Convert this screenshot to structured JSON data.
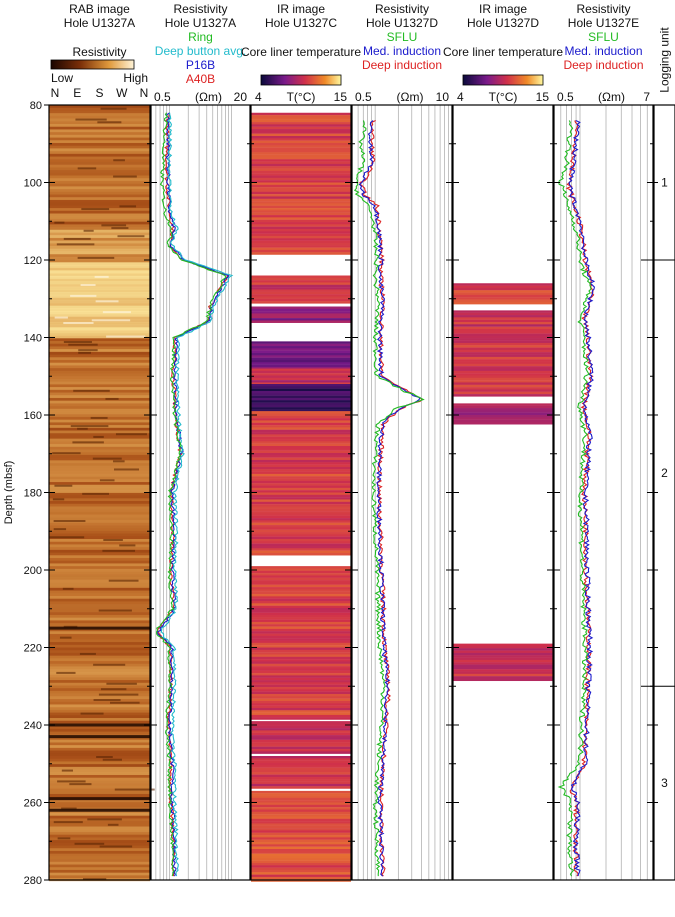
{
  "figure": {
    "depth_axis": {
      "label": "Depth (mbsf)",
      "range": [
        80,
        280
      ],
      "ticks": [
        80,
        100,
        120,
        140,
        160,
        180,
        200,
        220,
        240,
        260,
        280
      ],
      "inverted": true
    },
    "logging_unit": {
      "label": "Logging unit",
      "units": [
        {
          "name": "1",
          "top": 80,
          "bottom": 120
        },
        {
          "name": "2",
          "top": 120,
          "bottom": 230
        },
        {
          "name": "3",
          "top": 230,
          "bottom": 280
        }
      ]
    },
    "colors": {
      "ring": "#22bb22",
      "deep_button": "#22bbcc",
      "p16b": "#1a1acc",
      "a40b": "#dd2222",
      "sflu": "#22bb22",
      "med_induction": "#1a1acc",
      "deep_induction": "#dd2222"
    }
  },
  "chart_data": [
    {
      "type": "heatmap",
      "title": "RAB image",
      "subtitle": "Hole U1327A",
      "colorbar": {
        "label": "Resistivity",
        "low": "Low",
        "high": "High"
      },
      "x_ticks": [
        "N",
        "E",
        "S",
        "W",
        "N"
      ],
      "depth_range": [
        80,
        280
      ],
      "bright_zones": [
        [
          120,
          140
        ]
      ],
      "dark_bands": [
        215,
        240,
        243,
        259,
        262
      ]
    },
    {
      "type": "line",
      "title": "Resistivity",
      "subtitle": "Hole U1327A",
      "xlabel": "(Ωm)",
      "x_scale": "log",
      "xlim": [
        0.5,
        20
      ],
      "x_ticks": [
        0.5,
        20
      ],
      "series": [
        {
          "name": "Ring",
          "depth": [
            82,
            90,
            100,
            108,
            112,
            116,
            120,
            124,
            128,
            132,
            136,
            140,
            150,
            160,
            170,
            180,
            190,
            200,
            210,
            216,
            220,
            230,
            240,
            250,
            260,
            270,
            279
          ],
          "values": [
            0.9,
            0.8,
            0.75,
            0.85,
            1.1,
            0.95,
            1.6,
            8,
            6,
            4.5,
            4,
            1.2,
            1.1,
            1.2,
            1.5,
            1,
            1.1,
            1.0,
            1.1,
            0.6,
            1.0,
            1.0,
            0.9,
            1.0,
            1.0,
            1.1,
            1.1
          ]
        },
        {
          "name": "Deep button avg.",
          "depth": [
            82,
            90,
            100,
            108,
            112,
            116,
            120,
            124,
            128,
            132,
            136,
            140,
            150,
            160,
            170,
            180,
            190,
            200,
            210,
            216,
            220,
            230,
            240,
            250,
            260,
            270,
            279
          ],
          "values": [
            1.0,
            1.0,
            1.0,
            1.05,
            1.3,
            1.05,
            1.8,
            10,
            7,
            5,
            4.5,
            1.4,
            1.3,
            1.4,
            1.6,
            1.2,
            1.3,
            1.2,
            1.3,
            0.7,
            1.2,
            1.2,
            1.1,
            1.2,
            1.2,
            1.3,
            1.3
          ]
        },
        {
          "name": "P16B",
          "depth": [
            82,
            90,
            100,
            108,
            112,
            116,
            120,
            124,
            128,
            132,
            136,
            140,
            150,
            160,
            170,
            180,
            190,
            200,
            210,
            216,
            220,
            230,
            240,
            250,
            260,
            270,
            279
          ],
          "values": [
            0.95,
            0.95,
            0.95,
            1.0,
            1.2,
            1.0,
            1.7,
            9,
            6.5,
            4.8,
            4.2,
            1.3,
            1.2,
            1.3,
            1.55,
            1.1,
            1.2,
            1.1,
            1.2,
            0.65,
            1.1,
            1.1,
            1.0,
            1.1,
            1.1,
            1.2,
            1.2
          ]
        },
        {
          "name": "A40B",
          "depth": [
            82,
            90,
            100,
            108,
            112,
            116,
            120,
            124,
            128,
            132,
            136,
            140,
            150,
            160,
            170,
            180,
            190,
            200,
            210,
            216,
            220,
            230,
            240,
            250,
            260,
            270,
            279
          ],
          "values": [
            0.95,
            0.9,
            0.9,
            1.0,
            1.15,
            1.0,
            1.65,
            8.5,
            6.2,
            4.6,
            4.1,
            1.25,
            1.15,
            1.25,
            1.5,
            1.05,
            1.15,
            1.05,
            1.15,
            0.62,
            1.05,
            1.05,
            0.95,
            1.05,
            1.05,
            1.15,
            1.15
          ]
        }
      ]
    },
    {
      "type": "heatmap",
      "title": "IR image",
      "subtitle": "Hole U1327C",
      "colorbar": {
        "label": "Core liner temperature"
      },
      "xlabel": "T(°C)",
      "xlim": [
        4,
        15
      ],
      "x_ticks": [
        4,
        15
      ],
      "depth_range": [
        80,
        280
      ],
      "cores": [
        {
          "top": 82,
          "bottom": 118,
          "t": 10.5
        },
        {
          "top": 124,
          "bottom": 131,
          "t": 10
        },
        {
          "top": 132,
          "bottom": 136,
          "t": 8
        },
        {
          "top": 141,
          "bottom": 148,
          "t": 7
        },
        {
          "top": 148,
          "bottom": 152,
          "t": 9.5
        },
        {
          "top": 152,
          "bottom": 159,
          "t": 5.5
        },
        {
          "top": 159,
          "bottom": 196,
          "t": 10.5
        },
        {
          "top": 199,
          "bottom": 238,
          "t": 10.5
        },
        {
          "top": 239,
          "bottom": 247,
          "t": 10
        },
        {
          "top": 248,
          "bottom": 256,
          "t": 10
        },
        {
          "top": 257,
          "bottom": 280,
          "t": 11
        }
      ]
    },
    {
      "type": "line",
      "title": "Resistivity",
      "subtitle": "Hole U1327D",
      "xlabel": "(Ωm)",
      "x_scale": "log",
      "xlim": [
        0.5,
        10
      ],
      "x_ticks": [
        0.5,
        10
      ],
      "series": [
        {
          "name": "SFLU",
          "depth": [
            84,
            90,
            95,
            100,
            103,
            106,
            110,
            115,
            120,
            125,
            130,
            140,
            150,
            154,
            156,
            158,
            162,
            170,
            180,
            190,
            200,
            210,
            220,
            230,
            240,
            250,
            260,
            270,
            279
          ],
          "values": [
            0.75,
            0.65,
            0.7,
            0.55,
            0.6,
            0.8,
            0.95,
            1.0,
            1.05,
            1.0,
            1.1,
            1.0,
            1.05,
            2.5,
            4.5,
            2.0,
            1.1,
            1.0,
            0.95,
            1.0,
            1.05,
            1.1,
            1.15,
            1.3,
            1.2,
            1.1,
            1.0,
            1.05,
            1.1
          ]
        },
        {
          "name": "Med. induction",
          "depth": [
            84,
            90,
            95,
            100,
            103,
            106,
            110,
            115,
            120,
            125,
            130,
            140,
            150,
            154,
            156,
            158,
            162,
            170,
            180,
            190,
            200,
            210,
            220,
            230,
            240,
            250,
            260,
            270,
            279
          ],
          "values": [
            0.9,
            0.85,
            0.9,
            0.65,
            0.7,
            1.0,
            1.1,
            1.15,
            1.2,
            1.15,
            1.25,
            1.15,
            1.2,
            2.6,
            4.0,
            2.2,
            1.25,
            1.15,
            1.1,
            1.15,
            1.2,
            1.25,
            1.3,
            1.45,
            1.35,
            1.25,
            1.15,
            1.2,
            1.25
          ]
        },
        {
          "name": "Deep induction",
          "depth": [
            84,
            90,
            95,
            100,
            103,
            106,
            110,
            115,
            120,
            125,
            130,
            140,
            150,
            154,
            156,
            158,
            162,
            170,
            180,
            190,
            200,
            210,
            220,
            230,
            240,
            250,
            260,
            270,
            279
          ],
          "values": [
            0.95,
            0.9,
            0.95,
            0.68,
            0.72,
            1.05,
            1.12,
            1.18,
            1.22,
            1.18,
            1.28,
            1.18,
            1.22,
            2.7,
            4.2,
            2.3,
            1.3,
            1.18,
            1.12,
            1.18,
            1.22,
            1.28,
            1.33,
            1.5,
            1.38,
            1.28,
            1.18,
            1.22,
            1.28
          ]
        }
      ]
    },
    {
      "type": "heatmap",
      "title": "IR image",
      "subtitle": "Hole U1327D",
      "colorbar": {
        "label": "Core liner temperature"
      },
      "xlabel": "T(°C)",
      "xlim": [
        4,
        15
      ],
      "x_ticks": [
        4,
        15
      ],
      "depth_range": [
        80,
        280
      ],
      "cores": [
        {
          "top": 126,
          "bottom": 131,
          "t": 10.5
        },
        {
          "top": 133,
          "bottom": 155,
          "t": 10
        },
        {
          "top": 157,
          "bottom": 162,
          "t": 8.5
        },
        {
          "top": 219,
          "bottom": 228,
          "t": 10
        }
      ]
    },
    {
      "type": "line",
      "title": "Resistivity",
      "subtitle": "Hole U1327E",
      "xlabel": "(Ωm)",
      "x_scale": "log",
      "xlim": [
        0.5,
        7
      ],
      "x_ticks": [
        0.5,
        7
      ],
      "series": [
        {
          "name": "SFLU",
          "depth": [
            84,
            90,
            95,
            100,
            105,
            110,
            115,
            120,
            125,
            128,
            135,
            140,
            150,
            158,
            165,
            170,
            180,
            190,
            200,
            210,
            220,
            230,
            240,
            250,
            256,
            260,
            270,
            279
          ],
          "values": [
            0.8,
            0.75,
            0.7,
            0.6,
            0.7,
            0.85,
            0.95,
            1.0,
            1.2,
            1.3,
            1.0,
            1.1,
            1.2,
            1.0,
            1.15,
            1.1,
            1.0,
            1.05,
            1.05,
            1.1,
            1.15,
            1.1,
            1.05,
            1.0,
            0.6,
            0.8,
            0.75,
            0.8
          ]
        },
        {
          "name": "Med. induction",
          "depth": [
            84,
            90,
            95,
            100,
            105,
            110,
            115,
            120,
            125,
            128,
            135,
            140,
            150,
            158,
            165,
            170,
            180,
            190,
            200,
            210,
            220,
            230,
            240,
            250,
            256,
            260,
            270,
            279
          ],
          "values": [
            0.95,
            0.9,
            0.85,
            0.75,
            0.85,
            1.0,
            1.1,
            1.15,
            1.35,
            1.4,
            1.15,
            1.25,
            1.35,
            1.15,
            1.3,
            1.25,
            1.15,
            1.2,
            1.2,
            1.25,
            1.3,
            1.25,
            1.2,
            1.15,
            0.8,
            0.95,
            0.9,
            0.95
          ]
        },
        {
          "name": "Deep induction",
          "depth": [
            84,
            90,
            95,
            100,
            105,
            110,
            115,
            120,
            125,
            128,
            135,
            140,
            150,
            158,
            165,
            170,
            180,
            190,
            200,
            210,
            220,
            230,
            240,
            250,
            256,
            260,
            270,
            279
          ],
          "values": [
            0.92,
            0.88,
            0.83,
            0.73,
            0.83,
            0.98,
            1.08,
            1.12,
            1.32,
            1.38,
            1.12,
            1.22,
            1.32,
            1.12,
            1.27,
            1.22,
            1.12,
            1.17,
            1.17,
            1.22,
            1.27,
            1.22,
            1.17,
            1.12,
            0.78,
            0.92,
            0.87,
            0.92
          ]
        }
      ]
    }
  ]
}
